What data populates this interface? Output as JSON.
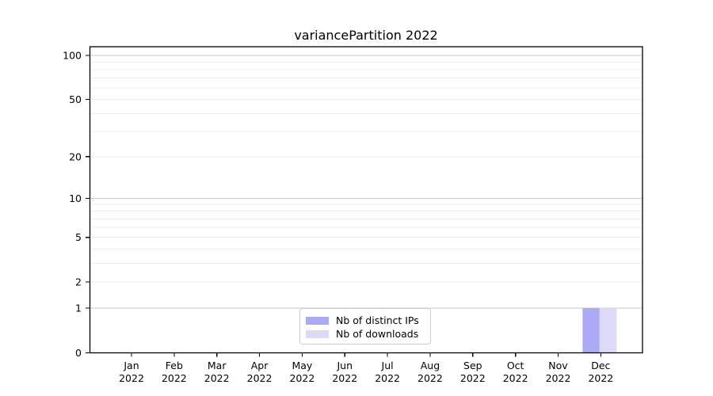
{
  "figure": {
    "background": "#ffffff"
  },
  "chart_data": {
    "type": "bar",
    "title": "variancePartition 2022",
    "categories": [
      "Jan",
      "Feb",
      "Mar",
      "Apr",
      "May",
      "Jun",
      "Jul",
      "Aug",
      "Sep",
      "Oct",
      "Nov",
      "Dec"
    ],
    "year_label": "2022",
    "series": [
      {
        "name": "Nb of distinct IPs",
        "color": "#aaaaf6",
        "values": [
          0,
          0,
          0,
          0,
          0,
          0,
          0,
          0,
          0,
          0,
          0,
          1
        ]
      },
      {
        "name": "Nb of downloads",
        "color": "#dcdaf8",
        "values": [
          0,
          0,
          0,
          0,
          0,
          0,
          0,
          0,
          0,
          0,
          0,
          1
        ]
      }
    ],
    "y_scale": "log1p",
    "y_ticks": [
      0,
      1,
      2,
      5,
      10,
      20,
      50,
      100
    ],
    "y_minor_gridlines": [
      3,
      4,
      6,
      7,
      8,
      9,
      30,
      40,
      60,
      70,
      80,
      90
    ],
    "y_decade_gridlines": [
      1,
      10,
      100
    ],
    "ylim": [
      0,
      115
    ],
    "xlabel": "",
    "ylabel": "",
    "grid": true,
    "legend_position": "lower center",
    "colors": {
      "axis": "#000000",
      "text": "#000000",
      "grid_major": "#c9c9c9",
      "grid_minor": "#ededed",
      "legend_border": "#cccccc"
    }
  }
}
